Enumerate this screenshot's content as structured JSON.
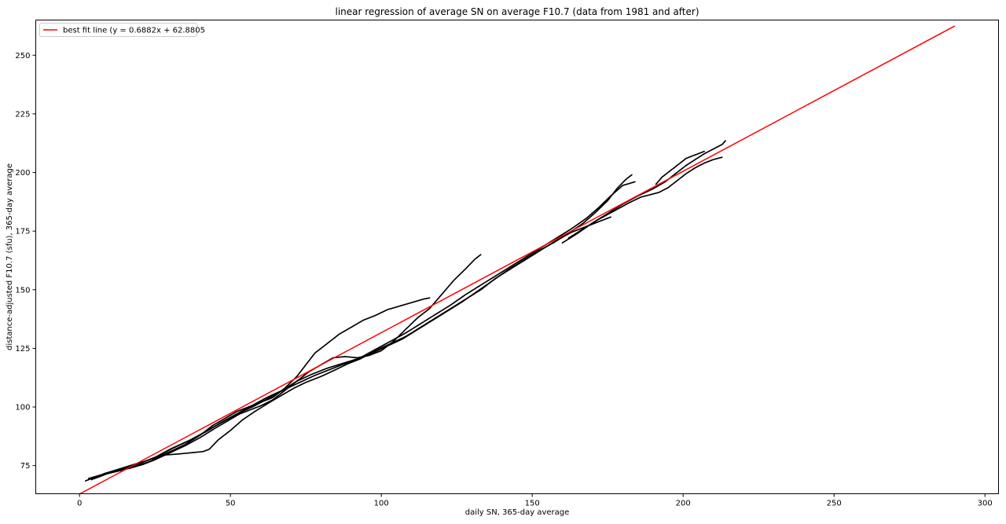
{
  "chart_data": {
    "type": "scatter",
    "title": "linear regression of average SN on average F10.7 (data from 1981 and after)",
    "xlabel": "daily SN, 365-day average",
    "ylabel": "distance-adjusted F10.7 (sfu), 365-day average",
    "xlim": [
      -14.5,
      304.5
    ],
    "ylim": [
      63,
      265
    ],
    "xticks": [
      0,
      50,
      100,
      150,
      200,
      250,
      300
    ],
    "yticks": [
      75,
      100,
      125,
      150,
      175,
      200,
      225,
      250
    ],
    "grid": false,
    "legend": {
      "placement": "top-left",
      "entries": [
        {
          "label": "best fit line (y = 0.6882x + 62.8805",
          "color": "#ff0000"
        }
      ]
    },
    "fit_line": {
      "slope": 0.6882,
      "intercept": 62.8805,
      "x_range": [
        0,
        290
      ],
      "color": "#ff0000"
    },
    "scatter_color": "#000000",
    "scatter_traces": [
      {
        "points": [
          [
            2,
            68.5
          ],
          [
            5,
            70
          ],
          [
            9,
            71.5
          ],
          [
            14,
            73
          ],
          [
            19,
            75
          ],
          [
            24,
            77
          ],
          [
            28,
            79.5
          ],
          [
            33,
            80
          ],
          [
            37,
            80.5
          ],
          [
            41,
            81
          ],
          [
            43,
            82
          ],
          [
            46,
            86
          ],
          [
            50,
            90
          ],
          [
            54,
            94.5
          ],
          [
            58,
            98
          ],
          [
            63,
            102
          ],
          [
            67,
            105
          ],
          [
            71,
            108
          ],
          [
            75,
            110.5
          ],
          [
            80,
            113
          ],
          [
            85,
            116
          ],
          [
            89,
            118.5
          ],
          [
            93,
            120.5
          ],
          [
            98,
            124
          ],
          [
            103,
            127
          ],
          [
            108,
            130
          ],
          [
            113,
            134
          ],
          [
            118,
            138
          ],
          [
            123,
            142
          ],
          [
            128,
            146
          ],
          [
            133,
            150
          ],
          [
            138,
            155
          ],
          [
            143,
            159
          ],
          [
            148,
            163
          ],
          [
            153,
            167
          ],
          [
            158,
            171
          ],
          [
            163,
            174.5
          ],
          [
            168,
            177
          ],
          [
            172,
            179
          ],
          [
            176,
            181
          ]
        ]
      },
      {
        "points": [
          [
            3,
            69.5
          ],
          [
            7,
            71
          ],
          [
            12,
            72.5
          ],
          [
            17,
            74
          ],
          [
            21,
            75.5
          ],
          [
            25,
            77.5
          ],
          [
            30,
            80.5
          ],
          [
            35,
            83.5
          ],
          [
            40,
            87
          ],
          [
            45,
            91
          ],
          [
            49,
            94
          ],
          [
            53,
            97
          ],
          [
            57,
            99
          ],
          [
            60,
            100.5
          ],
          [
            64,
            103
          ],
          [
            68,
            107
          ],
          [
            72,
            111
          ],
          [
            76,
            115
          ],
          [
            80,
            118
          ],
          [
            84,
            121
          ],
          [
            88,
            121.5
          ],
          [
            92,
            121
          ],
          [
            96,
            122
          ],
          [
            100,
            124
          ],
          [
            104,
            128
          ],
          [
            108,
            133
          ],
          [
            112,
            138
          ],
          [
            116,
            142
          ],
          [
            120,
            148
          ],
          [
            124,
            154
          ],
          [
            128,
            159
          ],
          [
            131,
            163
          ],
          [
            133,
            165
          ]
        ]
      },
      {
        "points": [
          [
            4,
            69
          ],
          [
            8,
            71.5
          ],
          [
            13,
            73.5
          ],
          [
            18,
            75.5
          ],
          [
            22,
            77
          ],
          [
            26,
            78.5
          ],
          [
            30,
            81
          ],
          [
            35,
            84
          ],
          [
            40,
            88
          ],
          [
            44,
            92
          ],
          [
            48,
            95
          ],
          [
            52,
            98
          ],
          [
            56,
            100
          ],
          [
            60,
            102
          ],
          [
            64,
            104
          ],
          [
            68,
            108
          ],
          [
            72,
            113
          ],
          [
            75,
            118
          ],
          [
            78,
            123
          ],
          [
            82,
            127
          ],
          [
            86,
            131
          ],
          [
            90,
            134
          ],
          [
            94,
            137
          ],
          [
            98,
            139
          ],
          [
            102,
            141.5
          ],
          [
            106,
            143
          ],
          [
            110,
            144.5
          ],
          [
            114,
            146
          ],
          [
            116,
            146.5
          ]
        ]
      },
      {
        "points": [
          [
            5,
            69.5
          ],
          [
            10,
            72
          ],
          [
            15,
            74
          ],
          [
            20,
            76
          ],
          [
            25,
            78.5
          ],
          [
            30,
            82
          ],
          [
            36,
            85.5
          ],
          [
            42,
            89.5
          ],
          [
            47,
            93.5
          ],
          [
            52,
            97
          ],
          [
            57,
            100.5
          ],
          [
            62,
            104
          ],
          [
            67,
            107
          ],
          [
            72,
            111
          ],
          [
            77,
            114
          ],
          [
            82,
            116.5
          ],
          [
            87,
            118.5
          ],
          [
            92,
            120.5
          ],
          [
            97,
            123
          ],
          [
            102,
            126
          ],
          [
            107,
            129
          ],
          [
            112,
            133
          ],
          [
            117,
            137
          ],
          [
            122,
            141
          ],
          [
            127,
            145
          ],
          [
            132,
            149.5
          ],
          [
            137,
            154
          ],
          [
            142,
            158.5
          ],
          [
            147,
            162.5
          ],
          [
            152,
            166.5
          ],
          [
            157,
            170
          ],
          [
            162,
            174
          ],
          [
            167,
            178.5
          ],
          [
            171,
            183
          ],
          [
            175,
            188
          ],
          [
            178,
            193
          ],
          [
            181,
            197
          ],
          [
            183,
            199
          ]
        ]
      },
      {
        "points": [
          [
            6,
            70
          ],
          [
            11,
            72.5
          ],
          [
            16,
            74.5
          ],
          [
            21,
            76.5
          ],
          [
            26,
            79
          ],
          [
            31,
            82.5
          ],
          [
            37,
            86
          ],
          [
            43,
            90.5
          ],
          [
            48,
            94
          ],
          [
            53,
            97.5
          ],
          [
            58,
            100.5
          ],
          [
            63,
            104
          ],
          [
            68,
            107.5
          ],
          [
            73,
            110.5
          ],
          [
            78,
            113.5
          ],
          [
            83,
            116
          ],
          [
            88,
            118.5
          ],
          [
            93,
            121
          ],
          [
            98,
            124.5
          ],
          [
            103,
            128
          ],
          [
            108,
            131.5
          ],
          [
            113,
            135.5
          ],
          [
            118,
            139.5
          ],
          [
            123,
            143.5
          ],
          [
            128,
            148
          ],
          [
            133,
            152
          ],
          [
            138,
            156
          ],
          [
            143,
            160
          ],
          [
            148,
            164
          ],
          [
            153,
            168
          ],
          [
            158,
            172
          ],
          [
            163,
            176
          ],
          [
            168,
            180.5
          ],
          [
            172,
            185
          ],
          [
            176,
            190
          ],
          [
            180,
            194.5
          ],
          [
            184,
            196
          ]
        ]
      },
      {
        "points": [
          [
            160,
            170
          ],
          [
            165,
            174
          ],
          [
            170,
            178.5
          ],
          [
            175,
            182.5
          ],
          [
            180,
            186.5
          ],
          [
            185,
            190
          ],
          [
            190,
            193
          ],
          [
            194,
            196
          ],
          [
            198,
            200
          ],
          [
            201,
            203
          ],
          [
            204,
            205.5
          ],
          [
            207,
            208
          ],
          [
            210,
            210
          ],
          [
            213,
            212
          ],
          [
            214,
            213.5
          ]
        ]
      },
      {
        "points": [
          [
            162,
            172
          ],
          [
            167,
            176
          ],
          [
            172,
            180
          ],
          [
            177,
            183.5
          ],
          [
            182,
            187
          ],
          [
            186,
            189.5
          ],
          [
            189,
            190.5
          ],
          [
            192,
            191.5
          ],
          [
            195,
            193.5
          ],
          [
            198,
            196.5
          ],
          [
            201,
            199.5
          ],
          [
            204,
            202
          ],
          [
            207,
            204
          ],
          [
            210,
            205.5
          ],
          [
            213,
            206.5
          ]
        ]
      },
      {
        "points": [
          [
            191,
            195
          ],
          [
            193,
            198
          ],
          [
            195,
            200
          ],
          [
            197,
            202
          ],
          [
            199,
            204
          ],
          [
            201,
            206
          ],
          [
            203,
            207
          ],
          [
            205,
            208
          ],
          [
            207,
            209
          ]
        ]
      }
    ]
  }
}
